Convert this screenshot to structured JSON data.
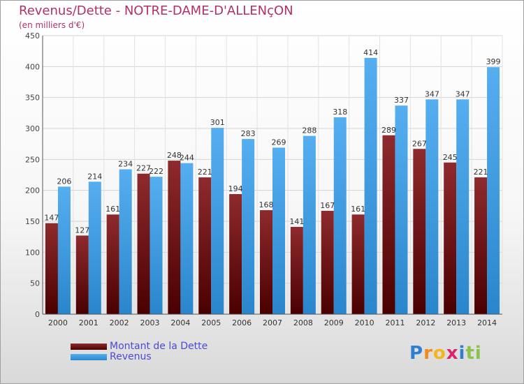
{
  "header": {
    "title": "Revenus/Dette - NOTRE-DAME-D'ALLENçON",
    "subtitle": "(en milliers d'€)"
  },
  "legend": {
    "items": [
      {
        "label": "Montant de la Dette",
        "color": "#7a0f12"
      },
      {
        "label": "Revenus",
        "color": "#3d9be0"
      }
    ]
  },
  "logo": {
    "letters": [
      {
        "ch": "P",
        "color": "#2f7fd0"
      },
      {
        "ch": "r",
        "color": "#f08a1c"
      },
      {
        "ch": "o",
        "color": "#f2b51c"
      },
      {
        "ch": "x",
        "color": "#d9256e"
      },
      {
        "ch": "i",
        "color": "#2f7fd0"
      },
      {
        "ch": "t",
        "color": "#8bc34a"
      },
      {
        "ch": "i",
        "color": "#8bc34a"
      }
    ]
  },
  "chart_data": {
    "type": "bar",
    "title": "Revenus/Dette - NOTRE-DAME-D'ALLENçON",
    "subtitle": "(en milliers d'€)",
    "categories": [
      "2000",
      "2001",
      "2002",
      "2003",
      "2004",
      "2005",
      "2006",
      "2007",
      "2008",
      "2009",
      "2010",
      "2011",
      "2012",
      "2013",
      "2014"
    ],
    "series": [
      {
        "name": "Montant de la Dette",
        "color": "#7a0f12",
        "values": [
          147,
          127,
          161,
          227,
          248,
          221,
          194,
          168,
          141,
          167,
          161,
          289,
          267,
          245,
          221
        ]
      },
      {
        "name": "Revenus",
        "color": "#3d9be0",
        "values": [
          206,
          214,
          234,
          222,
          244,
          301,
          283,
          269,
          288,
          318,
          414,
          337,
          347,
          347,
          399
        ]
      }
    ],
    "ylim": [
      0,
      450
    ],
    "yticks": [
      0,
      50,
      100,
      150,
      200,
      250,
      300,
      350,
      400,
      450
    ],
    "grid": true,
    "legend_position": "bottom-left"
  }
}
